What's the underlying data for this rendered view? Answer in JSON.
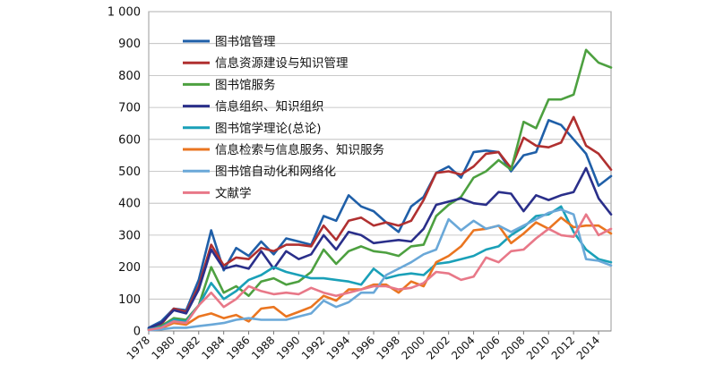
{
  "chart_data": {
    "type": "line",
    "title": "",
    "xlabel": "",
    "ylabel": "",
    "ylim": [
      0,
      1000
    ],
    "yticks": [
      0,
      100,
      200,
      300,
      400,
      500,
      600,
      700,
      800,
      900,
      1000
    ],
    "ytick_labels": [
      "0",
      "100",
      "200",
      "300",
      "400",
      "500",
      "600",
      "700",
      "800",
      "900",
      "1 000"
    ],
    "xlim": [
      1978,
      2015
    ],
    "xticks": [
      1978,
      1980,
      1982,
      1984,
      1986,
      1988,
      1990,
      1992,
      1994,
      1996,
      1998,
      2000,
      2002,
      2004,
      2006,
      2008,
      2010,
      2012,
      2014
    ],
    "grid": "horizontal",
    "legend_position": "top-left",
    "x": [
      1978,
      1979,
      1980,
      1981,
      1982,
      1983,
      1984,
      1985,
      1986,
      1987,
      1988,
      1989,
      1990,
      1991,
      1992,
      1993,
      1994,
      1995,
      1996,
      1997,
      1998,
      1999,
      2000,
      2001,
      2002,
      2003,
      2004,
      2005,
      2006,
      2007,
      2008,
      2009,
      2010,
      2011,
      2012,
      2013,
      2014,
      2015
    ],
    "series": [
      {
        "name": "图书馆管理",
        "color": "#1f5fa8",
        "values": [
          10,
          30,
          70,
          65,
          160,
          315,
          190,
          260,
          235,
          280,
          240,
          290,
          280,
          270,
          360,
          345,
          425,
          390,
          375,
          340,
          310,
          390,
          420,
          495,
          515,
          480,
          560,
          565,
          560,
          500,
          550,
          560,
          660,
          645,
          600,
          555,
          455,
          485
        ]
      },
      {
        "name": "信息资源建设与知识管理",
        "color": "#b03030",
        "values": [
          5,
          20,
          70,
          60,
          140,
          270,
          205,
          230,
          225,
          260,
          250,
          270,
          270,
          265,
          330,
          285,
          345,
          355,
          330,
          340,
          330,
          345,
          410,
          495,
          500,
          490,
          515,
          555,
          560,
          510,
          605,
          580,
          575,
          590,
          670,
          580,
          555,
          505
        ]
      },
      {
        "name": "图书馆服务",
        "color": "#4da040",
        "values": [
          5,
          15,
          40,
          35,
          80,
          200,
          120,
          140,
          110,
          155,
          165,
          145,
          155,
          185,
          255,
          210,
          250,
          265,
          250,
          245,
          235,
          265,
          270,
          360,
          395,
          420,
          480,
          500,
          535,
          505,
          655,
          635,
          725,
          725,
          740,
          880,
          840,
          825
        ]
      },
      {
        "name": "信息组织、知识组织",
        "color": "#2a2f8a",
        "values": [
          8,
          25,
          65,
          55,
          130,
          255,
          195,
          205,
          195,
          250,
          195,
          250,
          225,
          240,
          300,
          255,
          310,
          300,
          275,
          280,
          285,
          280,
          320,
          395,
          405,
          415,
          400,
          395,
          435,
          430,
          375,
          425,
          410,
          425,
          435,
          510,
          415,
          365
        ]
      },
      {
        "name": "图书馆学理论(总论)",
        "color": "#1aa0b8",
        "values": [
          5,
          12,
          35,
          30,
          80,
          150,
          100,
          125,
          160,
          175,
          200,
          185,
          175,
          165,
          165,
          160,
          155,
          145,
          195,
          165,
          175,
          180,
          175,
          210,
          215,
          225,
          235,
          255,
          265,
          300,
          325,
          360,
          365,
          390,
          310,
          255,
          225,
          215
        ]
      },
      {
        "name": "信息检索与信息服务、知识服务",
        "color": "#ea7520",
        "values": [
          3,
          8,
          25,
          20,
          45,
          55,
          40,
          50,
          30,
          70,
          75,
          45,
          60,
          75,
          110,
          95,
          130,
          130,
          145,
          145,
          120,
          155,
          140,
          215,
          235,
          265,
          315,
          320,
          330,
          275,
          305,
          340,
          320,
          355,
          325,
          330,
          330,
          305
        ]
      },
      {
        "name": "图书馆自动化和网络化",
        "color": "#6aa8d8",
        "values": [
          2,
          5,
          10,
          10,
          15,
          20,
          25,
          35,
          40,
          35,
          35,
          35,
          45,
          55,
          95,
          75,
          90,
          120,
          120,
          175,
          195,
          215,
          240,
          255,
          350,
          315,
          345,
          320,
          330,
          310,
          330,
          350,
          370,
          380,
          365,
          225,
          220,
          205
        ]
      },
      {
        "name": "文献学",
        "color": "#e87888",
        "values": [
          3,
          10,
          30,
          25,
          80,
          120,
          75,
          100,
          140,
          125,
          115,
          120,
          115,
          135,
          120,
          110,
          120,
          130,
          140,
          140,
          130,
          135,
          150,
          185,
          180,
          160,
          170,
          230,
          215,
          250,
          255,
          290,
          320,
          300,
          295,
          365,
          300,
          320
        ]
      }
    ]
  }
}
